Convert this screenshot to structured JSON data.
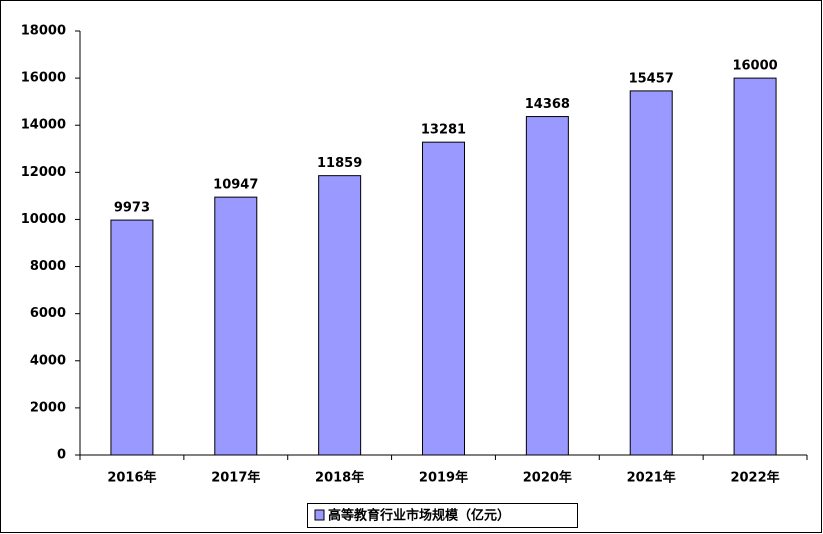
{
  "chart_data": {
    "type": "bar",
    "categories": [
      "2016年",
      "2017年",
      "2018年",
      "2019年",
      "2020年",
      "2021年",
      "2022年"
    ],
    "series": [
      {
        "name": "高等教育行业市场规模（亿元）",
        "color": "#9999ff",
        "values": [
          9973,
          10947,
          11859,
          13281,
          14368,
          15457,
          16000
        ]
      }
    ],
    "ylim": [
      0,
      18000
    ],
    "yticks": [
      0,
      2000,
      4000,
      6000,
      8000,
      10000,
      12000,
      14000,
      16000,
      18000
    ],
    "grid": false,
    "legend": "bottom"
  }
}
